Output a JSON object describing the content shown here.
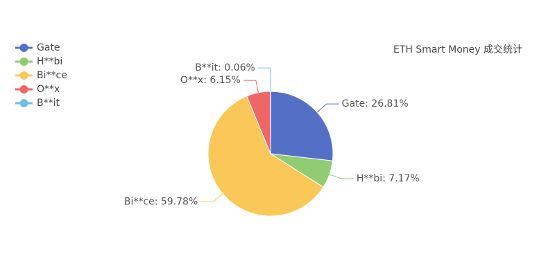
{
  "chart_data": {
    "type": "pie",
    "title": "ETH Smart Money 成交统计",
    "categories": [
      "Gate",
      "H**bi",
      "Bi**ce",
      "O**x",
      "B**it"
    ],
    "values": [
      26.81,
      7.17,
      59.78,
      6.15,
      0.06
    ],
    "value_labels": [
      "Gate: 26.81%",
      "H**bi: 7.17%",
      "Bi**ce: 59.78%",
      "O**x: 6.15%",
      "B**it: 0.06%"
    ],
    "colors": [
      "#5470c6",
      "#91cc75",
      "#fac858",
      "#ee6666",
      "#73c0de"
    ],
    "legend": "top-left"
  }
}
